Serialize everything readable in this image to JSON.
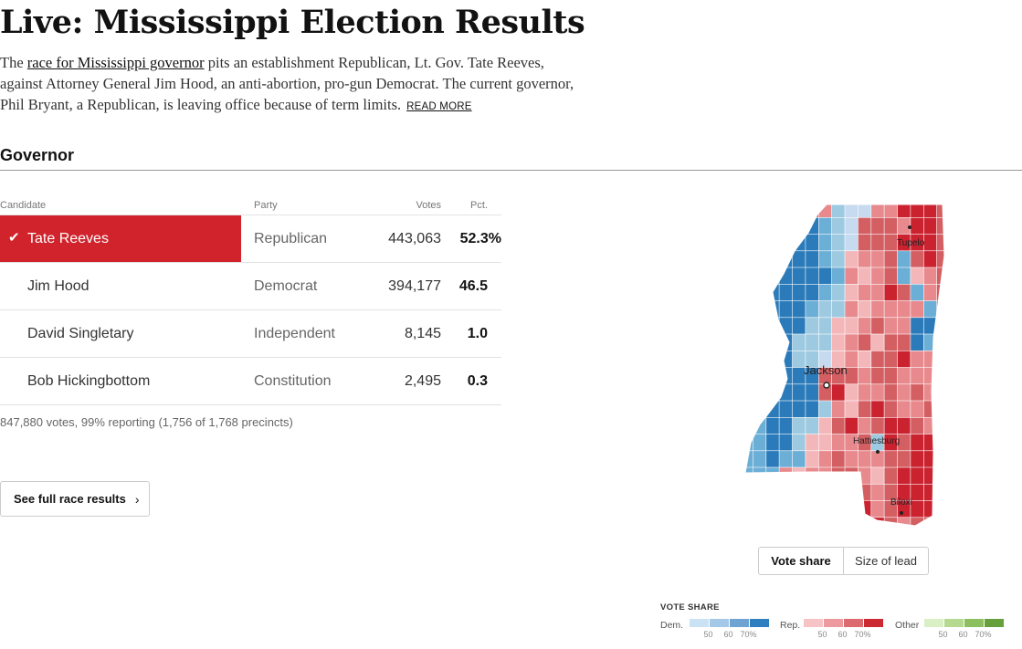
{
  "headline": "Live: Mississippi Election Results",
  "intro": {
    "prefix": "The ",
    "link_text": "race for Mississippi governor",
    "rest": " pits an establishment Republican, Lt. Gov. Tate Reeves, against Attorney General Jim Hood, an anti-abortion, pro-gun Democrat. The current governor, Phil Bryant, a Republican, is leaving office because of term limits.",
    "read_more": "READ MORE"
  },
  "section": {
    "title": "Governor"
  },
  "table": {
    "headers": {
      "candidate": "Candidate",
      "party": "Party",
      "votes": "Votes",
      "pct": "Pct."
    },
    "rows": [
      {
        "name": "Tate Reeves",
        "party": "Republican",
        "votes": "443,063",
        "pct": "52.3%",
        "winner": true
      },
      {
        "name": "Jim Hood",
        "party": "Democrat",
        "votes": "394,177",
        "pct": "46.5",
        "winner": false
      },
      {
        "name": "David Singletary",
        "party": "Independent",
        "votes": "8,145",
        "pct": "1.0",
        "winner": false
      },
      {
        "name": "Bob Hickingbottom",
        "party": "Constitution",
        "votes": "2,495",
        "pct": "0.3",
        "winner": false
      }
    ],
    "check_icon": "✔",
    "reporting": "847,880 votes, 99% reporting (1,756 of 1,768 precincts)"
  },
  "full_results_button": {
    "label": "See full race results",
    "chevron": "›"
  },
  "map": {
    "cities": {
      "tupelo": "Tupelo",
      "jackson": "Jackson",
      "hattiesburg": "Hattiesburg",
      "biloxi": "Biloxi"
    },
    "colors": {
      "dem": [
        "#c6dbef",
        "#9ecae1",
        "#6baed6",
        "#2b7bba"
      ],
      "rep": [
        "#f4b7b9",
        "#e88a8d",
        "#d45f63",
        "#cb2230"
      ]
    }
  },
  "toggle": {
    "vote_share": "Vote share",
    "size_of_lead": "Size of lead",
    "active": "vote_share"
  },
  "legend": {
    "title": "VOTE SHARE",
    "dem_label": "Dem.",
    "rep_label": "Rep.",
    "other_label": "Other",
    "ticks": [
      "50",
      "60",
      "70%"
    ],
    "dem_colors": [
      "#c9e2f4",
      "#a3c8e8",
      "#6fa3d2",
      "#2f7ebf"
    ],
    "rep_colors": [
      "#f6c4c6",
      "#ec9a9d",
      "#dc6a6f",
      "#cc2a33"
    ],
    "other_colors": [
      "#d9efc5",
      "#b4d98f",
      "#8cbf5d",
      "#65a03b"
    ]
  }
}
